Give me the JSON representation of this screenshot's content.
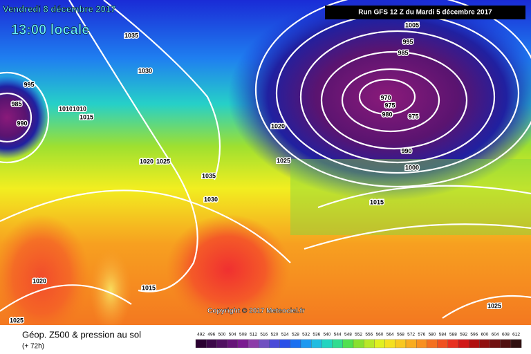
{
  "header": {
    "valid_date": "Vendredi 8 décembre 2017",
    "local_time": "13:00 locale",
    "run": "Run GFS 12 Z du Mardi 5 décembre 2017"
  },
  "isobar_labels": [
    1035,
    1030,
    995,
    985,
    990,
    1010,
    1010,
    1015,
    1020,
    1025,
    1020,
    1025,
    1035,
    1030,
    1015,
    1005,
    995,
    985,
    970,
    975,
    980,
    975,
    990,
    1000,
    1020,
    1015,
    1025,
    1025
  ],
  "copyright": "Copyright © 2017 Meteociel.fr",
  "legend": {
    "title": "Géop. Z500 & pression au sol",
    "lead": "(+ 72h)",
    "scale": [
      492,
      496,
      500,
      504,
      508,
      512,
      516,
      520,
      524,
      528,
      532,
      536,
      540,
      544,
      548,
      552,
      556,
      560,
      564,
      568,
      572,
      576,
      580,
      584,
      588,
      592,
      596,
      600,
      604,
      608,
      612
    ]
  }
}
